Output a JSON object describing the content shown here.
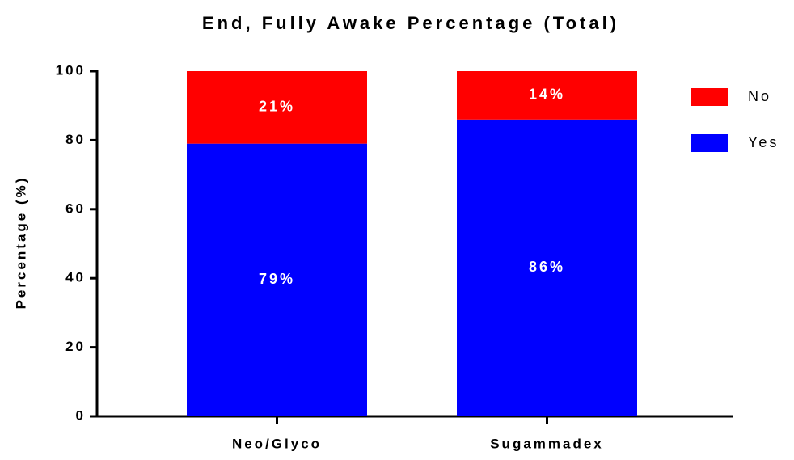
{
  "chart_data": {
    "type": "stacked_bar",
    "title": "End, Fully Awake Percentage (Total)",
    "y_label": "Percentage (%)",
    "categories": [
      "Neo/Glyco",
      "Sugammadex"
    ],
    "series": [
      {
        "name": "Yes",
        "color": "#0000ff",
        "values": [
          79,
          86
        ],
        "value_labels": [
          "79%",
          "86%"
        ]
      },
      {
        "name": "No",
        "color": "#ff0000",
        "values": [
          21,
          14
        ],
        "value_labels": [
          "21%",
          "14%"
        ]
      }
    ],
    "ylim": [
      0,
      100
    ],
    "yticks": [
      0,
      20,
      40,
      60,
      80,
      100
    ],
    "grid": false,
    "legend": "right"
  }
}
